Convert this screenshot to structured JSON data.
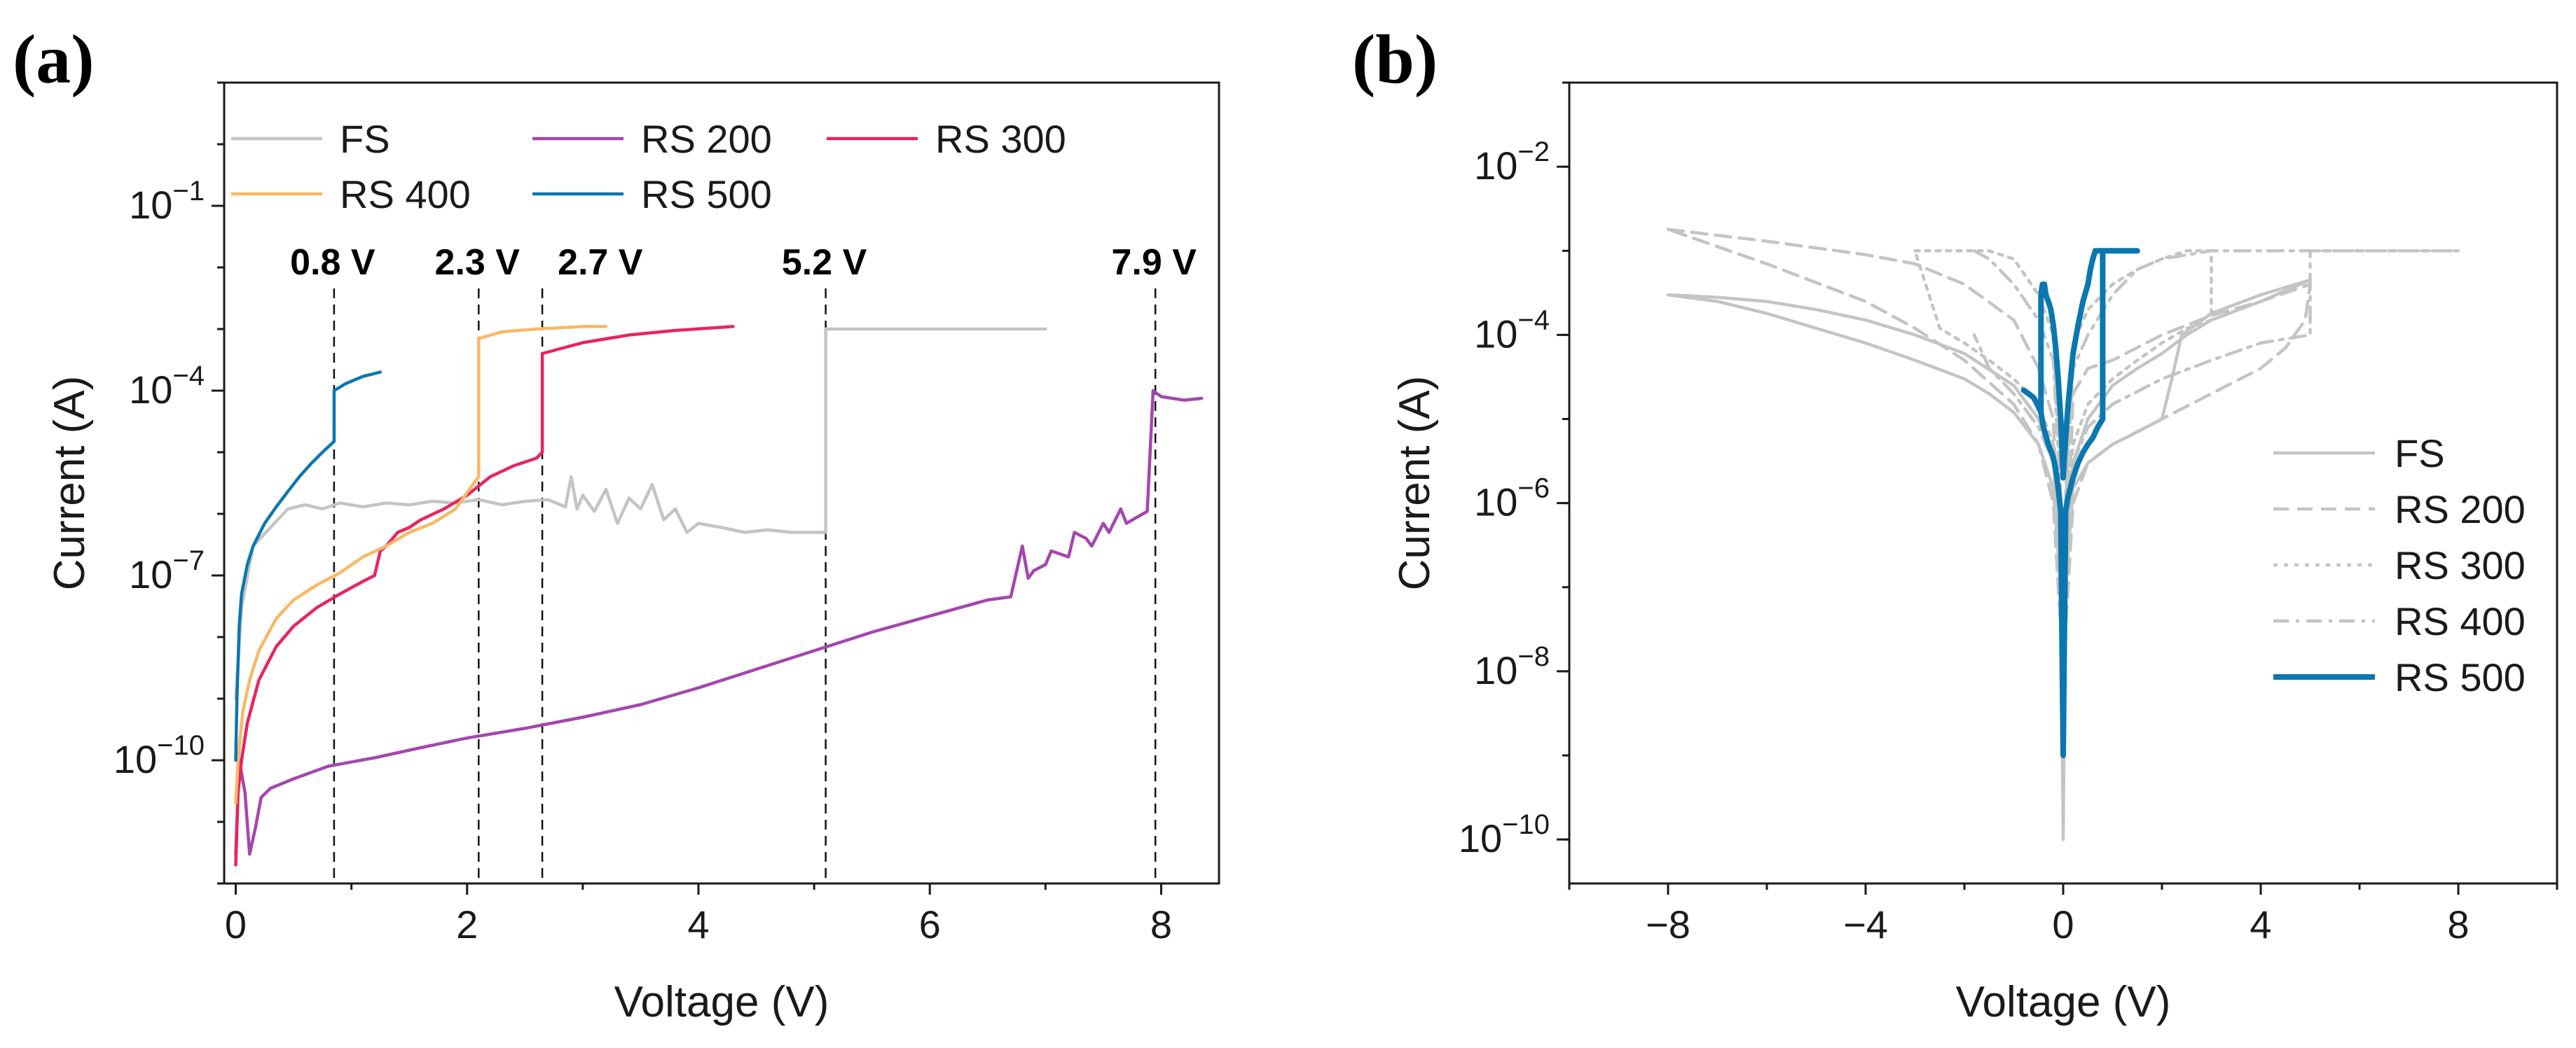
{
  "figure": {
    "panels": [
      {
        "id": "a",
        "label": "(a)"
      },
      {
        "id": "b",
        "label": "(b)"
      }
    ]
  },
  "chart_data": [
    {
      "panel": "(a)",
      "type": "line",
      "title": "",
      "xlabel": "Voltage (V)",
      "ylabel": "Current (A)",
      "yscale": "log",
      "xlim": [
        -0.1,
        8.5
      ],
      "ylim": [
        1e-12,
        10
      ],
      "x_ticks": [
        0,
        2,
        4,
        6,
        8
      ],
      "x_tick_labels": [
        "0",
        "2",
        "4",
        "6",
        "8"
      ],
      "y_ticks": [
        1e-10,
        1e-07,
        0.0001,
        0.1
      ],
      "y_tick_labels": [
        {
          "base": "10",
          "exp": "−10"
        },
        {
          "base": "10",
          "exp": "−7"
        },
        {
          "base": "10",
          "exp": "−4"
        },
        {
          "base": "10",
          "exp": "−1"
        }
      ],
      "grid": false,
      "legend_position": "top-left",
      "legend_order": [
        "FS",
        "RS 200",
        "RS 300",
        "RS 400",
        "RS 500"
      ],
      "annotations": [
        {
          "text": "0.8 V",
          "x": 0.85
        },
        {
          "text": "2.3 V",
          "x": 2.1
        },
        {
          "text": "2.7 V",
          "x": 2.65
        },
        {
          "text": "5.2 V",
          "x": 5.1
        },
        {
          "text": "7.9 V",
          "x": 7.95
        }
      ],
      "series": [
        {
          "name": "FS",
          "color": "#c4c4c4",
          "style": "solid",
          "x": [
            0.0,
            0.05,
            0.15,
            0.3,
            0.45,
            0.6,
            0.75,
            0.9,
            1.1,
            1.3,
            1.5,
            1.7,
            1.9,
            2.1,
            2.3,
            2.5,
            2.7,
            2.85,
            2.9,
            2.95,
            3.0,
            3.1,
            3.2,
            3.3,
            3.4,
            3.5,
            3.6,
            3.7,
            3.8,
            3.9,
            4.0,
            4.2,
            4.4,
            4.6,
            4.8,
            5.0,
            5.1,
            5.1,
            5.5,
            6.0,
            6.5,
            7.0
          ],
          "y": [
            1e-09,
            3e-08,
            3e-07,
            6e-07,
            1.2e-06,
            1.4e-06,
            1.2e-06,
            1.5e-06,
            1.3e-06,
            1.5e-06,
            1.4e-06,
            1.6e-06,
            1.5e-06,
            1.7e-06,
            1.4e-06,
            1.6e-06,
            1.7e-06,
            1.3e-06,
            4e-06,
            1.2e-06,
            2e-06,
            1.1e-06,
            2.5e-06,
            7e-07,
            1.8e-06,
            1.2e-06,
            3e-06,
            8e-07,
            1.2e-06,
            5e-07,
            7e-07,
            6e-07,
            5e-07,
            5.5e-07,
            5e-07,
            5e-07,
            5e-07,
            0.001,
            0.001,
            0.001,
            0.001,
            0.001
          ]
        },
        {
          "name": "RS 200",
          "color": "#a446ae",
          "style": "solid",
          "x": [
            0.0,
            0.03,
            0.08,
            0.12,
            0.17,
            0.22,
            0.3,
            0.5,
            0.8,
            1.2,
            1.6,
            2.0,
            2.5,
            3.0,
            3.5,
            4.0,
            4.5,
            5.0,
            5.5,
            6.0,
            6.5,
            6.7,
            6.8,
            6.85,
            6.9,
            7.0,
            7.05,
            7.2,
            7.25,
            7.35,
            7.4,
            7.5,
            7.55,
            7.65,
            7.7,
            7.8,
            7.88,
            7.93,
            8.0,
            8.2,
            8.35
          ],
          "y": [
            3e-12,
            1e-10,
            3e-11,
            3e-12,
            8e-12,
            2.5e-11,
            3.5e-11,
            5e-11,
            8e-11,
            1.1e-10,
            1.6e-10,
            2.3e-10,
            3.3e-10,
            5e-10,
            8e-10,
            1.5e-09,
            3e-09,
            6e-09,
            1.2e-08,
            2.2e-08,
            4e-08,
            4.5e-08,
            3e-07,
            9e-08,
            1.2e-07,
            1.5e-07,
            2.5e-07,
            2e-07,
            5e-07,
            4e-07,
            3e-07,
            7e-07,
            5e-07,
            1.2e-06,
            7e-07,
            9e-07,
            1.1e-06,
            0.0001,
            8e-05,
            7e-05,
            7.5e-05
          ]
        },
        {
          "name": "RS 300",
          "color": "#e8245f",
          "style": "solid",
          "x": [
            0.0,
            0.02,
            0.05,
            0.1,
            0.2,
            0.35,
            0.5,
            0.7,
            0.9,
            1.1,
            1.2,
            1.25,
            1.3,
            1.4,
            1.5,
            1.6,
            1.8,
            2.0,
            2.2,
            2.4,
            2.6,
            2.65,
            2.65,
            3.0,
            3.4,
            3.8,
            4.3
          ],
          "y": [
            2e-12,
            3e-11,
            1e-10,
            4e-10,
            2e-09,
            7e-09,
            1.5e-08,
            3e-08,
            5e-08,
            8e-08,
            1e-07,
            2.5e-07,
            3e-07,
            5e-07,
            6e-07,
            8e-07,
            1.2e-06,
            2e-06,
            4e-06,
            6e-06,
            8e-06,
            1e-05,
            0.0004,
            0.0006,
            0.0008,
            0.00095,
            0.0011
          ]
        },
        {
          "name": "RS 400",
          "color": "#f9b866",
          "style": "solid",
          "x": [
            0.0,
            0.02,
            0.06,
            0.12,
            0.2,
            0.35,
            0.5,
            0.7,
            0.9,
            1.1,
            1.3,
            1.5,
            1.7,
            1.9,
            2.05,
            2.1,
            2.1,
            2.3,
            2.6,
            3.0,
            3.2
          ],
          "y": [
            2e-11,
            1e-10,
            6e-10,
            2e-09,
            6e-09,
            2e-08,
            4e-08,
            7e-08,
            1.1e-07,
            2e-07,
            3e-07,
            5e-07,
            7e-07,
            1.2e-06,
            3e-06,
            4e-06,
            0.0007,
            0.0009,
            0.001,
            0.0011,
            0.0011
          ]
        },
        {
          "name": "RS 500",
          "color": "#0b77b0",
          "style": "solid",
          "x": [
            0.0,
            0.01,
            0.03,
            0.05,
            0.1,
            0.15,
            0.25,
            0.35,
            0.45,
            0.55,
            0.65,
            0.75,
            0.85,
            0.85,
            0.95,
            1.1,
            1.25
          ],
          "y": [
            1e-10,
            1e-09,
            1.5e-08,
            5e-08,
            1.5e-07,
            3e-07,
            7e-07,
            1.3e-06,
            2.3e-06,
            4e-06,
            6.5e-06,
            1e-05,
            1.5e-05,
            0.0001,
            0.00013,
            0.00017,
            0.0002
          ]
        }
      ]
    },
    {
      "panel": "(b)",
      "type": "line",
      "title": "",
      "xlabel": "Voltage (V)",
      "ylabel": "Current (A)",
      "yscale": "log",
      "xlim": [
        -10,
        10
      ],
      "ylim": [
        3e-11,
        0.1
      ],
      "x_ticks": [
        -8,
        -4,
        0,
        4,
        8
      ],
      "x_tick_labels": [
        "−8",
        "−4",
        "0",
        "4",
        "8"
      ],
      "y_ticks": [
        1e-10,
        1e-08,
        1e-06,
        0.0001,
        0.01
      ],
      "y_tick_labels": [
        {
          "base": "10",
          "exp": "−10"
        },
        {
          "base": "10",
          "exp": "−8"
        },
        {
          "base": "10",
          "exp": "−6"
        },
        {
          "base": "10",
          "exp": "−4"
        },
        {
          "base": "10",
          "exp": "−2"
        }
      ],
      "grid": false,
      "legend_position": "center-right",
      "legend_order": [
        "FS",
        "RS 200",
        "RS 300",
        "RS 400",
        "RS 500"
      ],
      "series": [
        {
          "name": "FS",
          "color": "#c4c4c4",
          "style": "solid",
          "x": [
            -8,
            -7,
            -6,
            -5,
            -4,
            -3,
            -2,
            -1.5,
            -1,
            -0.5,
            -0.2,
            -0.05,
            0,
            0.05,
            0.2,
            0.5,
            1,
            1.5,
            2,
            2.2,
            2.4,
            3,
            4,
            5,
            4,
            3,
            2.5,
            2,
            1.5,
            1,
            0.5,
            0.2,
            0.05,
            0,
            -0.05,
            -0.2,
            -0.5,
            -1,
            -2,
            -3,
            -4,
            -5,
            -6,
            -7,
            -8
          ],
          "y": [
            0.0003,
            0.00025,
            0.00018,
            0.00012,
            8e-05,
            5e-05,
            3e-05,
            2e-05,
            1.2e-05,
            5e-06,
            1.5e-06,
            1e-07,
            1e-09,
            1e-07,
            1.5e-06,
            3e-06,
            5e-06,
            7e-06,
            1e-05,
            3e-05,
            0.0001,
            0.00018,
            0.0003,
            0.00045,
            0.00025,
            0.00015,
            0.0001,
            6e-05,
            4e-05,
            2.5e-05,
            1e-05,
            3e-06,
            2e-07,
            1e-10,
            2e-07,
            3e-06,
            1e-05,
            2.5e-05,
            6e-05,
            0.0001,
            0.00015,
            0.0002,
            0.00025,
            0.00028,
            0.0003
          ]
        },
        {
          "name": "RS 200",
          "color": "#c4c4c4",
          "style": "dashed",
          "x": [
            -8,
            -6,
            -4,
            -3,
            -2,
            -1,
            -0.5,
            -0.2,
            0,
            0.2,
            0.5,
            1,
            2,
            3,
            4,
            5,
            4.9,
            4.5,
            4,
            3,
            2,
            1,
            0.5,
            0.2,
            0,
            -0.2,
            -0.5,
            -1,
            -2,
            -3,
            -4,
            -6,
            -8
          ],
          "y": [
            0.0018,
            0.0013,
            0.0009,
            0.0007,
            0.0004,
            0.00015,
            4e-05,
            1e-05,
            1e-08,
            2e-05,
            4e-05,
            5e-05,
            0.0001,
            0.00017,
            0.00025,
            0.0004,
            0.00015,
            7e-05,
            4e-05,
            2e-05,
            1e-05,
            5e-06,
            3e-06,
            1e-06,
            1e-08,
            1e-06,
            5e-06,
            1.5e-05,
            5e-05,
            0.00012,
            0.00025,
            0.0007,
            0.0018
          ]
        },
        {
          "name": "RS 300",
          "color": "#c4c4c4",
          "style": "dotted",
          "x": [
            -3,
            -2.5,
            -2,
            -1.5,
            -1,
            -0.5,
            -0.2,
            0,
            0.2,
            0.5,
            1,
            1.5,
            2,
            2.5,
            3,
            3,
            2.5,
            2,
            1.5,
            1,
            0.5,
            0.2,
            0,
            -0.2,
            -0.5,
            -1,
            -1.5,
            -2,
            -2.5,
            -3
          ],
          "y": [
            0.001,
            0.001,
            0.001,
            0.001,
            0.0008,
            0.0003,
            0.0001,
            3e-07,
            8e-05,
            0.0002,
            0.0004,
            0.0006,
            0.0008,
            0.001,
            0.001,
            0.00015,
            0.00012,
            8e-05,
            5e-05,
            3e-05,
            1.5e-05,
            5e-06,
            3e-07,
            5e-06,
            1.5e-05,
            3e-05,
            5e-05,
            8e-05,
            0.00012,
            0.001
          ]
        },
        {
          "name": "RS 400",
          "color": "#c4c4c4",
          "style": "dashdot",
          "x": [
            -1.8,
            -1.5,
            -1,
            -0.5,
            -0.2,
            0,
            0.2,
            0.5,
            1,
            1.5,
            2,
            3,
            4,
            5,
            6,
            7,
            8,
            8,
            7,
            6,
            5,
            5,
            4,
            3,
            2,
            1,
            0.5,
            0.2,
            0,
            -0.2,
            -0.5,
            -1,
            -1.5,
            -1.8
          ],
          "y": [
            0.001,
            0.0008,
            0.0004,
            0.00015,
            5e-05,
            3e-07,
            4e-05,
            0.0001,
            0.0003,
            0.0006,
            0.0008,
            0.001,
            0.001,
            0.001,
            0.001,
            0.001,
            0.001,
            0.001,
            0.001,
            0.001,
            0.001,
            0.0001,
            8e-05,
            5e-05,
            3e-05,
            1.5e-05,
            8e-06,
            3e-06,
            3e-07,
            3e-06,
            8e-06,
            2e-05,
            4e-05,
            0.0001
          ]
        },
        {
          "name": "RS 500",
          "color": "#0b77b0",
          "style": "solid",
          "x": [
            -0.45,
            -0.45,
            -0.42,
            -0.4,
            -0.38,
            -0.35,
            -0.3,
            -0.25,
            -0.2,
            -0.15,
            -0.1,
            -0.05,
            0,
            0.05,
            0.1,
            0.15,
            0.2,
            0.3,
            0.4,
            0.5,
            0.55,
            0.6,
            0.65,
            0.8,
            1.0,
            1.2,
            1.5,
            1.5,
            0.8,
            0.8,
            0.7,
            0.6,
            0.5,
            0.4,
            0.3,
            0.2,
            0.1,
            0.05,
            0,
            -0.05,
            -0.1,
            -0.15,
            -0.2,
            -0.3,
            -0.4,
            -0.45,
            -0.55,
            -0.6,
            -0.7,
            -0.8
          ],
          "y": [
            1.2e-05,
            0.0003,
            0.0004,
            0.00035,
            0.0004,
            0.0003,
            0.00025,
            0.0002,
            0.00013,
            7e-05,
            3e-05,
            1e-05,
            2e-06,
            6e-06,
            1.5e-05,
            3e-05,
            6e-05,
            0.00013,
            0.00025,
            0.0004,
            0.0006,
            0.0008,
            0.001,
            0.001,
            0.001,
            0.001,
            0.001,
            0.001,
            0.001,
            1e-05,
            8e-06,
            6e-06,
            5e-06,
            4e-06,
            3e-06,
            2e-06,
            1.2e-06,
            8e-07,
            1e-09,
            8e-07,
            1.5e-06,
            2.5e-06,
            3.5e-06,
            5e-06,
            8e-06,
            1.2e-05,
            1.6e-05,
            1.8e-05,
            2e-05,
            2.2e-05
          ]
        }
      ]
    }
  ]
}
